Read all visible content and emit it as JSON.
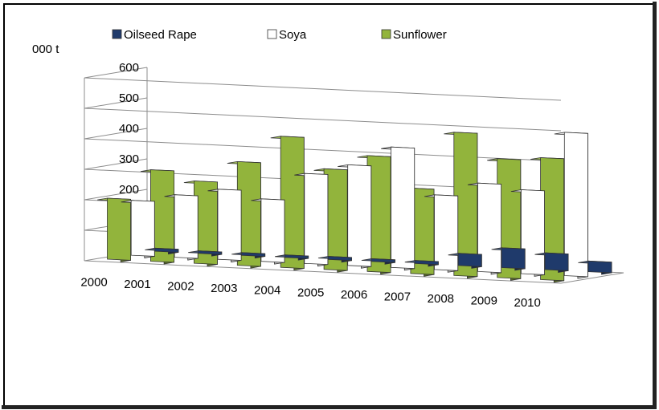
{
  "chart_data": {
    "type": "bar",
    "ylabel": "000 t",
    "ylim": [
      0,
      600
    ],
    "yticks": [
      0,
      100,
      200,
      300,
      400,
      500,
      600
    ],
    "grid": true,
    "legend_position": "top",
    "categories": [
      "2000",
      "2001",
      "2002",
      "2003",
      "2004",
      "2005",
      "2006",
      "2007",
      "2008",
      "2009",
      "2010"
    ],
    "series": [
      {
        "name": "Oilseed Rape",
        "color": "#1F3A6B",
        "values": [
          10,
          8,
          9,
          8,
          10,
          9,
          10,
          40,
          65,
          55,
          35
        ]
      },
      {
        "name": "Soya",
        "color": "#FFFFFF",
        "values": [
          180,
          205,
          230,
          205,
          295,
          330,
          395,
          245,
          290,
          275,
          470
        ]
      },
      {
        "name": "Sunflower",
        "color": "#92B43C",
        "values": [
          200,
          300,
          270,
          340,
          430,
          330,
          380,
          280,
          470,
          390,
          400
        ]
      }
    ]
  }
}
